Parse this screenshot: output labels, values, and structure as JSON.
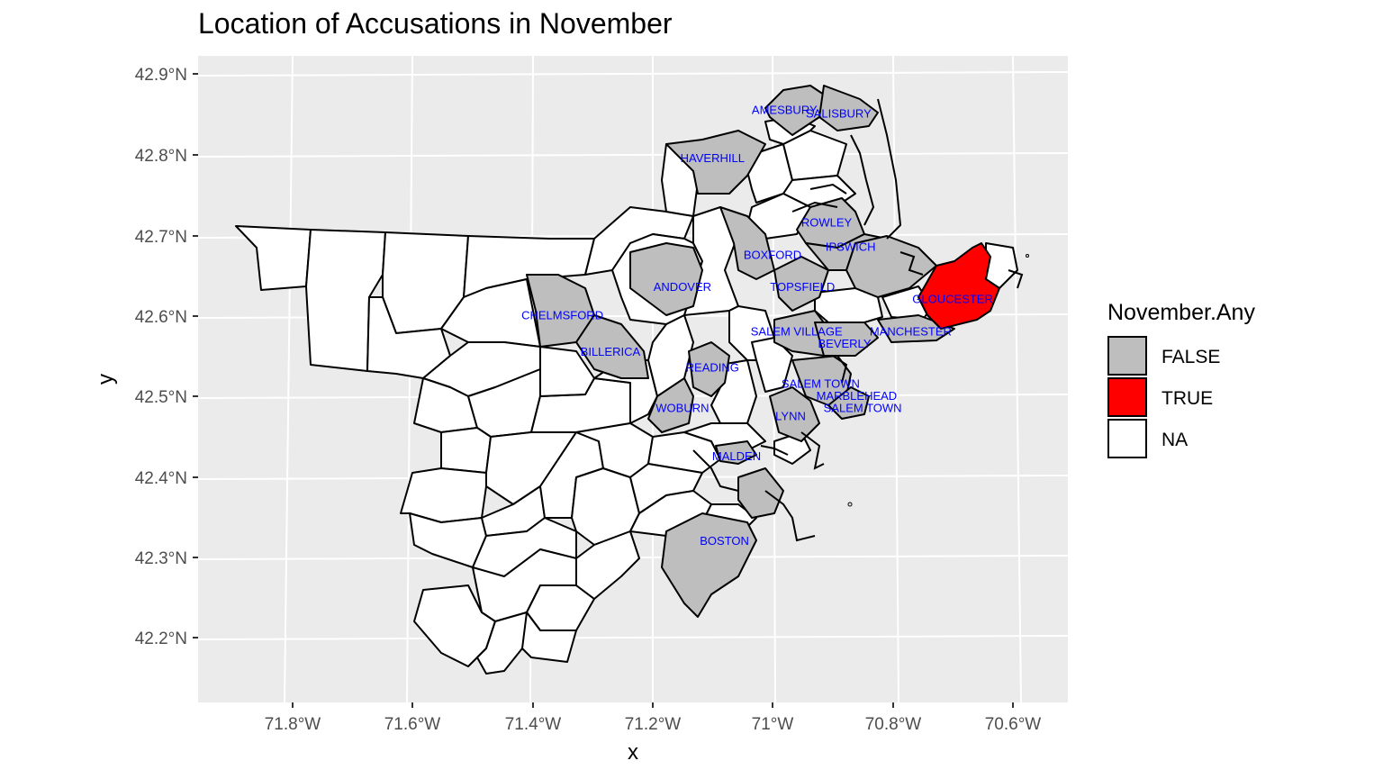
{
  "title": "Location of Accusations in November",
  "axes": {
    "xlabel": "x",
    "ylabel": "y",
    "xticks": [
      "71.8°W",
      "71.6°W",
      "71.4°W",
      "71.2°W",
      "71°W",
      "70.8°W",
      "70.6°W"
    ],
    "yticks": [
      "42.9°N",
      "42.8°N",
      "42.7°N",
      "42.6°N",
      "42.5°N",
      "42.4°N",
      "42.3°N",
      "42.2°N"
    ]
  },
  "legend": {
    "title": "November.Any",
    "items": [
      {
        "label": "FALSE",
        "color": "#bebebe"
      },
      {
        "label": "TRUE",
        "color": "#ff0000"
      },
      {
        "label": "NA",
        "color": "#ffffff"
      }
    ]
  },
  "colors": {
    "panel": "#ebebeb",
    "grid": "#ffffff",
    "false": "#bebebe",
    "true": "#ff0000",
    "na": "#ffffff",
    "label": "#0000ff"
  },
  "chart_data": {
    "type": "map",
    "title": "Location of Accusations in November",
    "xlabel": "x",
    "ylabel": "y",
    "legend_title": "November.Any",
    "legend_position": "right",
    "grid": true,
    "labeled_towns": [
      {
        "name": "AMESBURY",
        "lon": -70.98,
        "lat": 42.855,
        "november_any": "FALSE"
      },
      {
        "name": "SALISBURY",
        "lon": -70.89,
        "lat": 42.85,
        "november_any": "FALSE"
      },
      {
        "name": "HAVERHILL",
        "lon": -71.1,
        "lat": 42.795,
        "november_any": "FALSE"
      },
      {
        "name": "ROWLEY",
        "lon": -70.91,
        "lat": 42.715,
        "november_any": "FALSE"
      },
      {
        "name": "IPSWICH",
        "lon": -70.87,
        "lat": 42.685,
        "november_any": "FALSE"
      },
      {
        "name": "BOXFORD",
        "lon": -71.0,
        "lat": 42.675,
        "november_any": "FALSE"
      },
      {
        "name": "ANDOVER",
        "lon": -71.15,
        "lat": 42.635,
        "november_any": "FALSE"
      },
      {
        "name": "TOPSFIELD",
        "lon": -70.95,
        "lat": 42.635,
        "november_any": "FALSE"
      },
      {
        "name": "GLOUCESTER",
        "lon": -70.7,
        "lat": 42.62,
        "november_any": "TRUE"
      },
      {
        "name": "CHELMSFORD",
        "lon": -71.35,
        "lat": 42.6,
        "november_any": "FALSE"
      },
      {
        "name": "SALEM VILLAGE",
        "lon": -70.96,
        "lat": 42.58,
        "november_any": "FALSE"
      },
      {
        "name": "MANCHESTER",
        "lon": -70.77,
        "lat": 42.58,
        "november_any": "FALSE"
      },
      {
        "name": "BEVERLY",
        "lon": -70.88,
        "lat": 42.565,
        "november_any": "FALSE"
      },
      {
        "name": "BILLERICA",
        "lon": -71.27,
        "lat": 42.555,
        "november_any": "FALSE"
      },
      {
        "name": "READING",
        "lon": -71.1,
        "lat": 42.535,
        "november_any": "FALSE"
      },
      {
        "name": "SALEM TOWN",
        "lon": -70.92,
        "lat": 42.515,
        "november_any": "FALSE"
      },
      {
        "name": "MARBLEHEAD",
        "lon": -70.86,
        "lat": 42.5,
        "november_any": "FALSE"
      },
      {
        "name": "WOBURN",
        "lon": -71.15,
        "lat": 42.485,
        "november_any": "FALSE"
      },
      {
        "name": "SALEM TOWN",
        "lon": -70.85,
        "lat": 42.485,
        "november_any": "FALSE"
      },
      {
        "name": "LYNN",
        "lon": -70.97,
        "lat": 42.475,
        "november_any": "FALSE"
      },
      {
        "name": "MALDEN",
        "lon": -71.06,
        "lat": 42.425,
        "november_any": "FALSE"
      },
      {
        "name": "BOSTON",
        "lon": -71.08,
        "lat": 42.32,
        "november_any": "FALSE"
      }
    ]
  }
}
